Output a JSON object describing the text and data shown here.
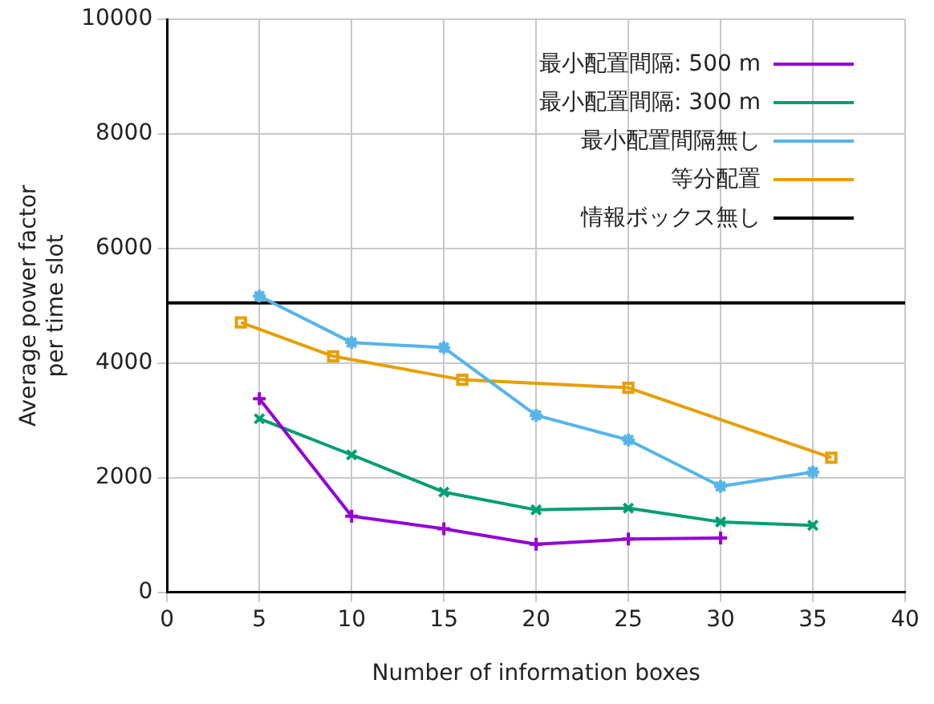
{
  "chart_data": {
    "type": "line",
    "xlabel": "Number of information boxes",
    "ylabel": "Average power factor per time slot",
    "xlim": [
      0,
      40
    ],
    "xticks": [
      0,
      5,
      10,
      15,
      20,
      25,
      30,
      35,
      40
    ],
    "ylim": [
      0,
      10000
    ],
    "yticks": [
      0,
      2000,
      4000,
      6000,
      8000,
      10000
    ],
    "grid": true,
    "legend": "top right",
    "series": [
      {
        "name": "最小配置間隔: 500 m",
        "color": "#9400d3",
        "marker": "cross",
        "x": [
          5,
          10,
          15,
          20,
          25,
          30
        ],
        "values": [
          3380,
          1330,
          1110,
          840,
          930,
          950
        ]
      },
      {
        "name": "最小配置間隔: 300 m",
        "color": "#009e73",
        "marker": "cross",
        "x": [
          5,
          10,
          15,
          20,
          25,
          30,
          35
        ],
        "values": [
          3030,
          2400,
          1750,
          1440,
          1470,
          1230,
          1170
        ]
      },
      {
        "name": "最小配置間隔無し",
        "color": "#56b4e9",
        "marker": "cross",
        "x": [
          5,
          10,
          15,
          20,
          25,
          30,
          35
        ],
        "values": [
          5170,
          4360,
          4270,
          3090,
          2660,
          1850,
          2100
        ]
      },
      {
        "name": "等分配置",
        "color": "#e69f00",
        "marker": "square",
        "x": [
          4,
          9,
          16,
          25,
          36
        ],
        "values": [
          4710,
          4120,
          3710,
          3570,
          2350
        ]
      }
    ],
    "ref_lines": [
      {
        "axis": "y",
        "value": 5050,
        "label": "情報ボックス無し",
        "color": "#000000"
      }
    ]
  }
}
